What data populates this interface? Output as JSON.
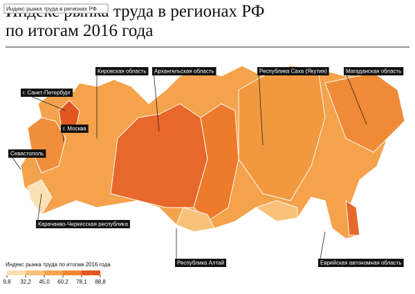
{
  "tooltip": "Индекс рынка труда в регионах РФ",
  "header": {
    "title_line1": "Индекс рынка труда в регионах РФ",
    "title_line2": "по итогам 2016 года"
  },
  "labels": [
    "г. Санкт-Петербург",
    "Кировская область",
    "Архангельская область",
    "Республика Саха (Якутия)",
    "Магаданская область",
    "г. Москва",
    "Севастополь",
    "Карачаево-Черкесская республика",
    "Республика Алтай",
    "Еврейская автономная область"
  ],
  "legend": {
    "title": "Индекс рынка труда по итогам 2016 года",
    "ticks": [
      {
        "value": 9.8,
        "label": "9,8"
      },
      {
        "value": 32.2,
        "label": "32,2"
      },
      {
        "value": 45.0,
        "label": "45,0"
      },
      {
        "value": 60.2,
        "label": "60,2"
      },
      {
        "value": 78.1,
        "label": "78,1"
      },
      {
        "value": 88.8,
        "label": "88,8"
      }
    ],
    "colors": [
      "#fbe0b4",
      "#f8c17a",
      "#f4a24c",
      "#ee8530",
      "#e4561f"
    ]
  }
}
